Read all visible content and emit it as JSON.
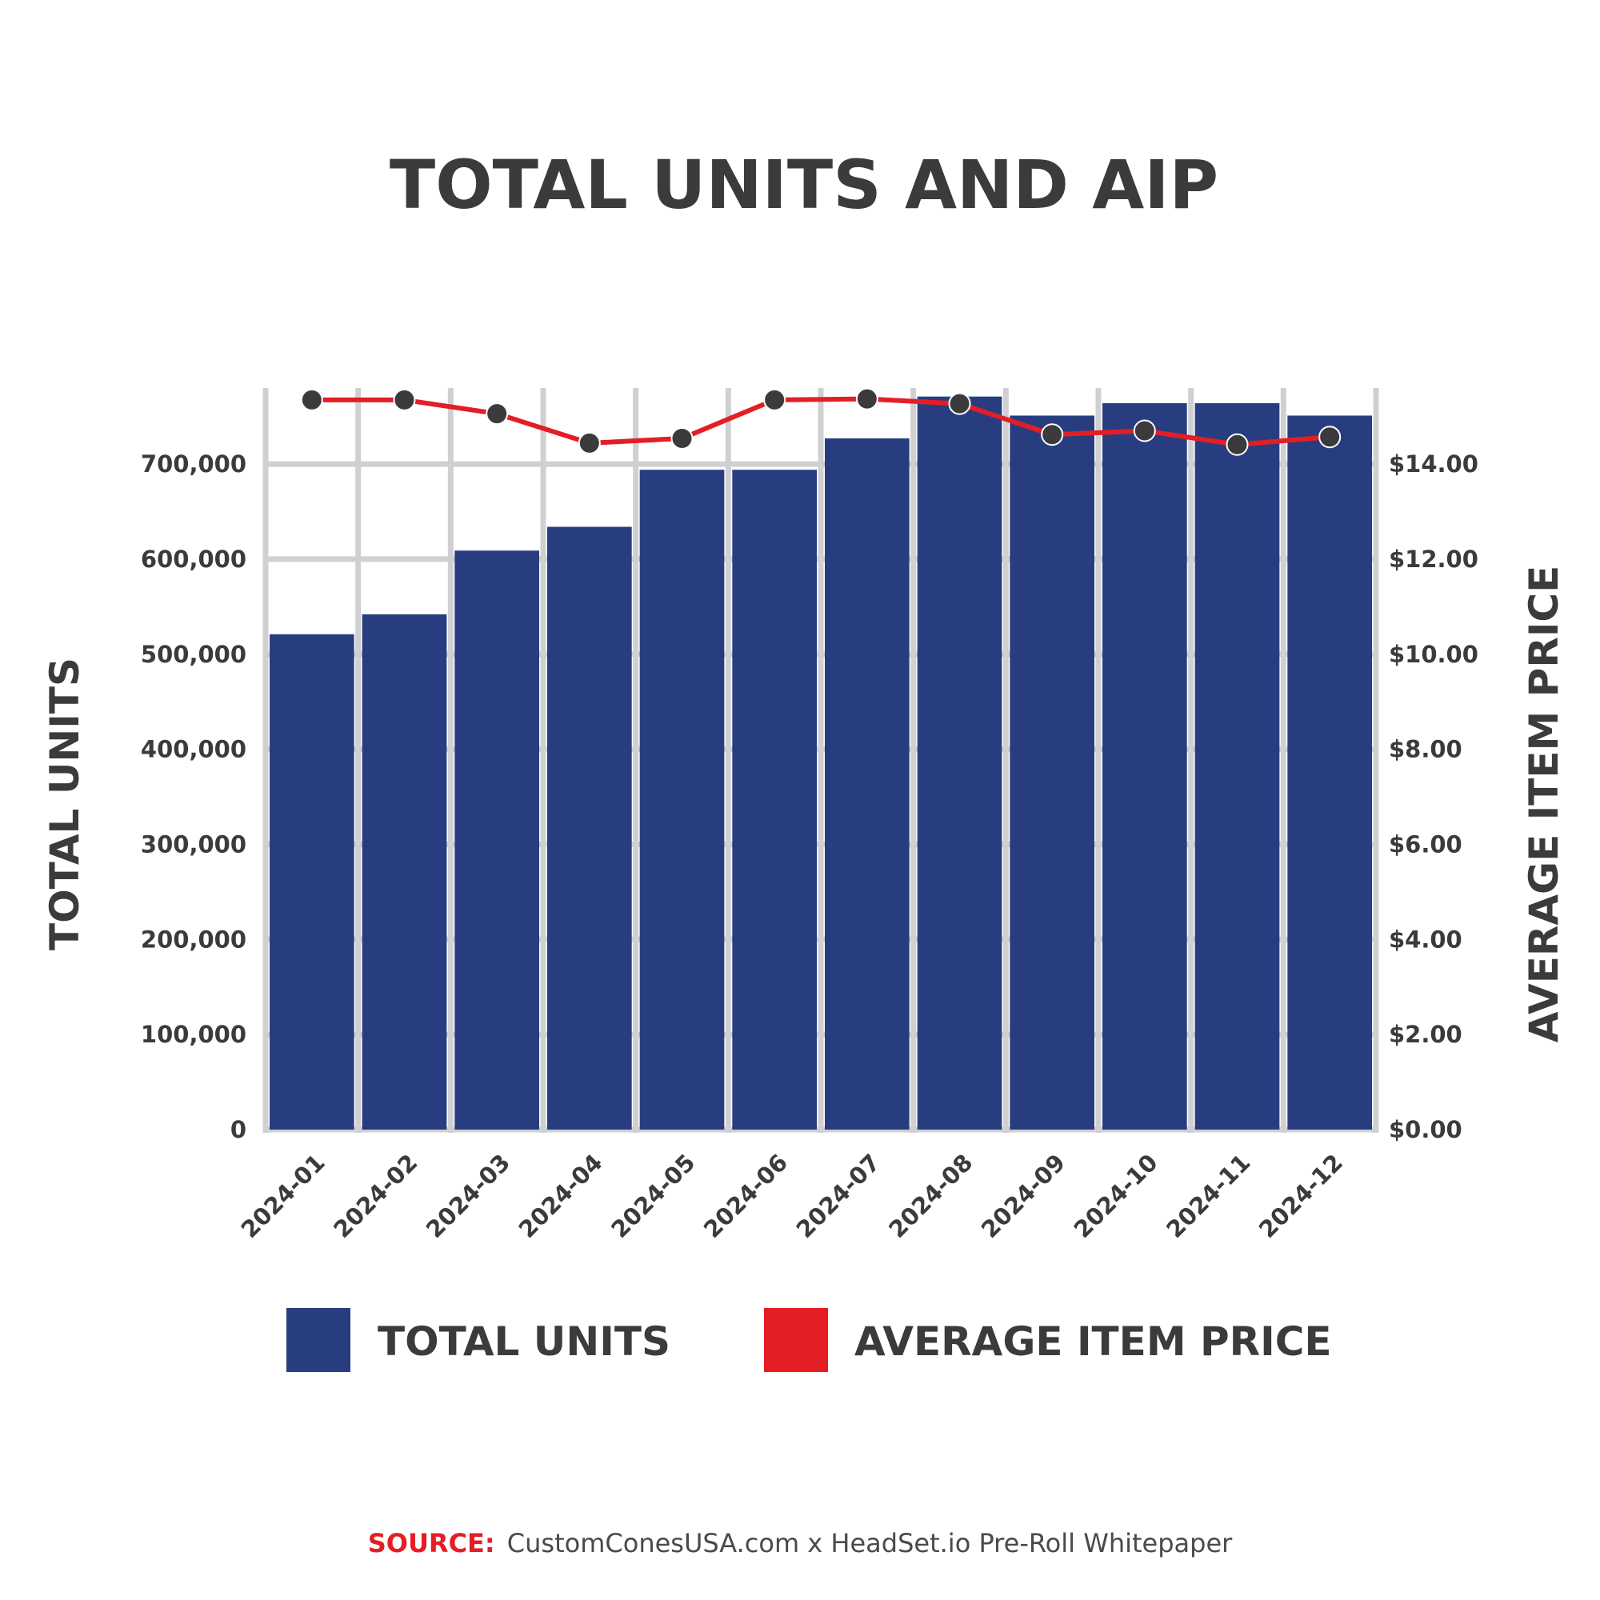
{
  "colors": {
    "bar": "#283d80",
    "line": "#e31e25",
    "point": "#3b3b3e",
    "grid": "#d0d0d3",
    "text": "#3b3b3e"
  },
  "source": {
    "label": "SOURCE:",
    "text": "CustomConesUSA.com x HeadSet.io Pre-Roll Whitepaper"
  },
  "chart_data": {
    "type": "bar",
    "title": "TOTAL UNITS AND AIP",
    "xlabel": "",
    "ylabel": "TOTAL UNITS",
    "y2label": "AVERAGE ITEM PRICE",
    "ylim": [
      0,
      780000
    ],
    "y2lim": [
      0,
      15.6
    ],
    "yticks": [
      0,
      100000,
      200000,
      300000,
      400000,
      500000,
      600000,
      700000
    ],
    "yticklabels": [
      "0",
      "100,000",
      "200,000",
      "300,000",
      "400,000",
      "500,000",
      "600,000",
      "700,000"
    ],
    "y2ticks": [
      0,
      2,
      4,
      6,
      8,
      10,
      12,
      14
    ],
    "y2ticklabels": [
      "$0.00",
      "$2.00",
      "$4.00",
      "$6.00",
      "$8.00",
      "$10.00",
      "$12.00",
      "$14.00"
    ],
    "grid": true,
    "legend": "bottom",
    "categories": [
      "2024-01",
      "2024-02",
      "2024-03",
      "2024-04",
      "2024-05",
      "2024-06",
      "2024-07",
      "2024-08",
      "2024-09",
      "2024-10",
      "2024-11",
      "2024-12"
    ],
    "series": [
      {
        "name": "TOTAL UNITS",
        "type": "bar",
        "axis": "left",
        "values": [
          521000,
          542000,
          609000,
          634000,
          694000,
          694000,
          727000,
          771000,
          751000,
          764000,
          764000,
          751000
        ]
      },
      {
        "name": "AVERAGE ITEM PRICE",
        "type": "line",
        "axis": "right",
        "values": [
          15.35,
          15.35,
          15.06,
          14.44,
          14.54,
          15.35,
          15.37,
          15.27,
          14.62,
          14.7,
          14.41,
          14.57
        ]
      }
    ]
  }
}
